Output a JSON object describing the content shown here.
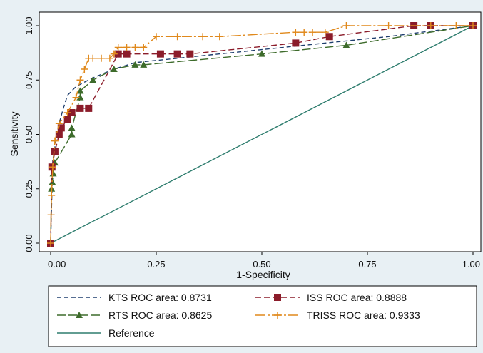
{
  "chart_data": {
    "type": "line",
    "xlabel": "1-Specificity",
    "ylabel": "Sensitivity",
    "xlim": [
      0,
      1
    ],
    "ylim": [
      0,
      1
    ],
    "xticks": [
      "0.00",
      "0.25",
      "0.50",
      "0.75",
      "1.00"
    ],
    "yticks": [
      "0.00",
      "0.25",
      "0.50",
      "0.75",
      "1.00"
    ],
    "grid": false,
    "legend_position": "bottom",
    "series": [
      {
        "name": "KTS ROC area: 0.8731",
        "color": "#1f3f6e",
        "dash": "6,4",
        "marker": "none",
        "x": [
          0,
          0.005,
          0.01,
          0.02,
          0.03,
          0.04,
          0.06,
          0.08,
          0.1,
          0.15,
          0.2,
          0.3,
          0.5,
          0.6,
          0.8,
          1.0
        ],
        "y": [
          0,
          0.38,
          0.44,
          0.55,
          0.62,
          0.68,
          0.72,
          0.74,
          0.76,
          0.8,
          0.83,
          0.85,
          0.89,
          0.91,
          0.95,
          1.0
        ]
      },
      {
        "name": "ISS ROC area: 0.8888",
        "color": "#8b1c2a",
        "dash": "8,4",
        "marker": "square",
        "x": [
          0,
          0.003,
          0.01,
          0.02,
          0.025,
          0.04,
          0.05,
          0.07,
          0.09,
          0.16,
          0.18,
          0.26,
          0.3,
          0.33,
          0.58,
          0.66,
          0.86,
          0.9,
          1.0
        ],
        "y": [
          0,
          0.35,
          0.42,
          0.5,
          0.53,
          0.57,
          0.6,
          0.62,
          0.62,
          0.87,
          0.87,
          0.87,
          0.87,
          0.87,
          0.92,
          0.95,
          1.0,
          1.0,
          1.0
        ]
      },
      {
        "name": "RTS ROC area: 0.8625",
        "color": "#3d6b2b",
        "dash": "12,4",
        "marker": "triangle",
        "x": [
          0,
          0.002,
          0.004,
          0.006,
          0.01,
          0.05,
          0.05,
          0.07,
          0.07,
          0.1,
          0.15,
          0.2,
          0.22,
          0.5,
          0.7,
          1.0
        ],
        "y": [
          0,
          0.25,
          0.28,
          0.32,
          0.37,
          0.5,
          0.53,
          0.67,
          0.7,
          0.75,
          0.8,
          0.82,
          0.82,
          0.87,
          0.91,
          1.0
        ]
      },
      {
        "name": "TRISS ROC area: 0.9333",
        "color": "#e0891c",
        "dash": "14,3,3,3",
        "marker": "plus",
        "x": [
          0,
          0.001,
          0.002,
          0.005,
          0.01,
          0.02,
          0.04,
          0.06,
          0.07,
          0.08,
          0.09,
          0.1,
          0.12,
          0.14,
          0.15,
          0.16,
          0.18,
          0.2,
          0.22,
          0.25,
          0.3,
          0.36,
          0.4,
          0.58,
          0.6,
          0.62,
          0.65,
          0.7,
          0.8,
          0.9,
          0.96,
          1.0
        ],
        "y": [
          0,
          0.13,
          0.22,
          0.35,
          0.47,
          0.55,
          0.6,
          0.67,
          0.75,
          0.8,
          0.85,
          0.85,
          0.85,
          0.85,
          0.87,
          0.9,
          0.9,
          0.9,
          0.9,
          0.95,
          0.95,
          0.95,
          0.95,
          0.97,
          0.97,
          0.97,
          0.97,
          1.0,
          1.0,
          1.0,
          1.0,
          1.0
        ]
      },
      {
        "name": "Reference",
        "color": "#2e7d6e",
        "dash": "",
        "marker": "none",
        "x": [
          0,
          1
        ],
        "y": [
          0,
          1
        ]
      }
    ]
  }
}
